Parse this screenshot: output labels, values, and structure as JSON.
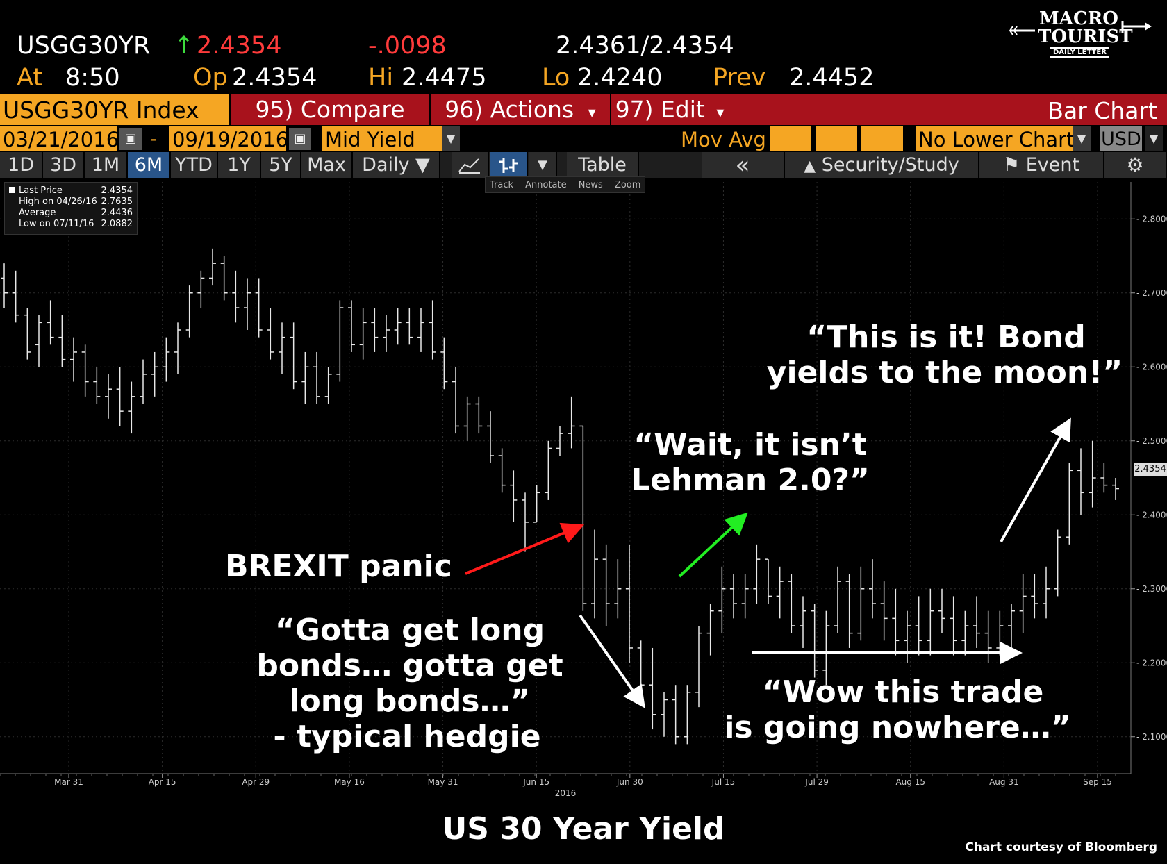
{
  "quote": {
    "ticker": "USGG30YR",
    "arrow": "↑",
    "last": "2.4354",
    "change": "-.0098",
    "bid_ask": "2.4361/2.4354",
    "at_label": "At",
    "time": "8:50",
    "open_label": "Op",
    "open": "2.4354",
    "high_label": "Hi",
    "high": "2.4475",
    "low_label": "Lo",
    "low": "2.4240",
    "prev_label": "Prev",
    "prev": "2.4452"
  },
  "logo": {
    "line1": "MACRO",
    "line2": "TOURIST",
    "line3": "DAILY LETTER"
  },
  "toolbar": {
    "index_name": "USGG30YR Index",
    "compare": "95) Compare",
    "actions": "96) Actions",
    "actions_caret": "▾",
    "edit": "97) Edit",
    "edit_caret": "▾",
    "chart_type": "Bar Chart"
  },
  "settings": {
    "start_date": "03/21/2016",
    "dash": "-",
    "end_date": "09/19/2016",
    "field": "Mid Yield",
    "mov_avg": "Mov Avg",
    "lower_chart": "No Lower Chart",
    "currency": "USD",
    "caret": "▼",
    "calendar_icon": "calendar-icon"
  },
  "tabs": {
    "periods": [
      "1D",
      "3D",
      "1M",
      "6M",
      "YTD",
      "1Y",
      "5Y",
      "Max"
    ],
    "active": "6M",
    "frequency": "Daily ▼",
    "table": "Table",
    "collapse": "«",
    "security_study": "Security/Study",
    "event": "Event",
    "line_icon": "line-chart-icon",
    "bar_icon": "bar-chart-icon",
    "gear_icon": "gear-icon"
  },
  "tools": [
    "Track",
    "Annotate",
    "News",
    "Zoom"
  ],
  "legend": [
    {
      "label": "Last Price",
      "value": "2.4354"
    },
    {
      "label": "High on 04/26/16",
      "value": "2.7635"
    },
    {
      "label": "Average",
      "value": "2.4436"
    },
    {
      "label": "Low on 07/11/16",
      "value": "2.0882"
    }
  ],
  "last_label": "2.4354",
  "annotations": {
    "brexit": "BREXIT panic",
    "gotta_1": "“Gotta get long",
    "gotta_2": "bonds… gotta get",
    "gotta_3": "long bonds…”",
    "gotta_4": "- typical hedgie",
    "lehman_1": "“Wait, it isn’t",
    "lehman_2": "Lehman 2.0?”",
    "nowhere_1": "“Wow this trade",
    "nowhere_2": "is going nowhere…”",
    "moon_1": "“This is it! Bond",
    "moon_2": "yields to the moon!”"
  },
  "title": "US 30 Year Yield",
  "credit": "Chart courtesy of Bloomberg",
  "colors": {
    "background": "#000000",
    "accent_orange": "#f5a623",
    "title_red": "#a8121c",
    "up_green": "#3ddc3d",
    "down_red": "#ff3b3b",
    "active_tab": "#29558a"
  },
  "chart_data": {
    "type": "bar",
    "ylim": [
      2.05,
      2.85
    ],
    "yticks": [
      "2.1000",
      "2.2000",
      "2.3000",
      "2.4000",
      "2.5000",
      "2.6000",
      "2.7000",
      "2.8000"
    ],
    "year_label": "2016",
    "xticks": [
      "Mar 31",
      "Apr 15",
      "Apr 29",
      "May 16",
      "May 31",
      "Jun 15",
      "Jun 30",
      "Jul 15",
      "Jul 29",
      "Aug 15",
      "Aug 31",
      "Sep 15"
    ],
    "ohlc": [
      [
        2.72,
        2.74,
        2.68,
        2.7
      ],
      [
        2.7,
        2.73,
        2.66,
        2.67
      ],
      [
        2.67,
        2.68,
        2.61,
        2.62
      ],
      [
        2.63,
        2.67,
        2.6,
        2.66
      ],
      [
        2.66,
        2.69,
        2.63,
        2.64
      ],
      [
        2.64,
        2.67,
        2.6,
        2.61
      ],
      [
        2.61,
        2.64,
        2.58,
        2.62
      ],
      [
        2.62,
        2.63,
        2.56,
        2.58
      ],
      [
        2.58,
        2.6,
        2.55,
        2.56
      ],
      [
        2.56,
        2.59,
        2.53,
        2.57
      ],
      [
        2.57,
        2.6,
        2.52,
        2.54
      ],
      [
        2.54,
        2.58,
        2.51,
        2.56
      ],
      [
        2.56,
        2.61,
        2.55,
        2.59
      ],
      [
        2.59,
        2.62,
        2.56,
        2.6
      ],
      [
        2.6,
        2.64,
        2.58,
        2.62
      ],
      [
        2.62,
        2.66,
        2.59,
        2.65
      ],
      [
        2.65,
        2.71,
        2.64,
        2.7
      ],
      [
        2.7,
        2.73,
        2.68,
        2.72
      ],
      [
        2.72,
        2.76,
        2.71,
        2.74
      ],
      [
        2.74,
        2.75,
        2.69,
        2.7
      ],
      [
        2.7,
        2.73,
        2.66,
        2.68
      ],
      [
        2.68,
        2.72,
        2.65,
        2.7
      ],
      [
        2.7,
        2.72,
        2.64,
        2.65
      ],
      [
        2.65,
        2.68,
        2.61,
        2.62
      ],
      [
        2.62,
        2.66,
        2.59,
        2.64
      ],
      [
        2.64,
        2.66,
        2.57,
        2.58
      ],
      [
        2.58,
        2.62,
        2.55,
        2.6
      ],
      [
        2.6,
        2.62,
        2.55,
        2.56
      ],
      [
        2.56,
        2.6,
        2.55,
        2.59
      ],
      [
        2.59,
        2.69,
        2.58,
        2.68
      ],
      [
        2.68,
        2.69,
        2.62,
        2.63
      ],
      [
        2.63,
        2.68,
        2.61,
        2.66
      ],
      [
        2.66,
        2.68,
        2.62,
        2.64
      ],
      [
        2.64,
        2.67,
        2.62,
        2.65
      ],
      [
        2.65,
        2.68,
        2.63,
        2.66
      ],
      [
        2.66,
        2.68,
        2.63,
        2.64
      ],
      [
        2.64,
        2.68,
        2.62,
        2.66
      ],
      [
        2.66,
        2.69,
        2.61,
        2.62
      ],
      [
        2.62,
        2.64,
        2.57,
        2.58
      ],
      [
        2.58,
        2.6,
        2.51,
        2.52
      ],
      [
        2.52,
        2.56,
        2.5,
        2.55
      ],
      [
        2.55,
        2.56,
        2.51,
        2.52
      ],
      [
        2.52,
        2.54,
        2.47,
        2.48
      ],
      [
        2.48,
        2.49,
        2.43,
        2.44
      ],
      [
        2.44,
        2.46,
        2.39,
        2.42
      ],
      [
        2.42,
        2.43,
        2.35,
        2.39
      ],
      [
        2.39,
        2.44,
        2.39,
        2.43
      ],
      [
        2.43,
        2.5,
        2.42,
        2.49
      ],
      [
        2.49,
        2.52,
        2.48,
        2.51
      ],
      [
        2.51,
        2.56,
        2.49,
        2.52
      ],
      [
        2.52,
        2.52,
        2.27,
        2.28
      ],
      [
        2.28,
        2.38,
        2.26,
        2.34
      ],
      [
        2.34,
        2.36,
        2.25,
        2.28
      ],
      [
        2.28,
        2.34,
        2.26,
        2.3
      ],
      [
        2.3,
        2.36,
        2.2,
        2.22
      ],
      [
        2.22,
        2.23,
        2.15,
        2.17
      ],
      [
        2.17,
        2.22,
        2.11,
        2.13
      ],
      [
        2.13,
        2.16,
        2.1,
        2.15
      ],
      [
        2.15,
        2.17,
        2.09,
        2.1
      ],
      [
        2.1,
        2.17,
        2.09,
        2.16
      ],
      [
        2.16,
        2.25,
        2.14,
        2.24
      ],
      [
        2.24,
        2.28,
        2.21,
        2.27
      ],
      [
        2.27,
        2.33,
        2.24,
        2.3
      ],
      [
        2.3,
        2.32,
        2.26,
        2.28
      ],
      [
        2.28,
        2.32,
        2.26,
        2.3
      ],
      [
        2.3,
        2.36,
        2.28,
        2.34
      ],
      [
        2.34,
        2.34,
        2.28,
        2.29
      ],
      [
        2.29,
        2.33,
        2.26,
        2.31
      ],
      [
        2.31,
        2.32,
        2.24,
        2.25
      ],
      [
        2.25,
        2.29,
        2.22,
        2.27
      ],
      [
        2.27,
        2.28,
        2.18,
        2.19
      ],
      [
        2.19,
        2.27,
        2.17,
        2.25
      ],
      [
        2.25,
        2.33,
        2.24,
        2.31
      ],
      [
        2.31,
        2.32,
        2.22,
        2.24
      ],
      [
        2.24,
        2.33,
        2.23,
        2.3
      ],
      [
        2.3,
        2.34,
        2.26,
        2.28
      ],
      [
        2.28,
        2.31,
        2.23,
        2.26
      ],
      [
        2.26,
        2.3,
        2.21,
        2.23
      ],
      [
        2.23,
        2.27,
        2.2,
        2.25
      ],
      [
        2.25,
        2.29,
        2.21,
        2.23
      ],
      [
        2.23,
        2.3,
        2.21,
        2.27
      ],
      [
        2.27,
        2.3,
        2.24,
        2.26
      ],
      [
        2.26,
        2.29,
        2.21,
        2.23
      ],
      [
        2.23,
        2.27,
        2.21,
        2.25
      ],
      [
        2.25,
        2.29,
        2.22,
        2.24
      ],
      [
        2.24,
        2.27,
        2.2,
        2.22
      ],
      [
        2.22,
        2.27,
        2.21,
        2.25
      ],
      [
        2.25,
        2.28,
        2.22,
        2.27
      ],
      [
        2.27,
        2.32,
        2.24,
        2.29
      ],
      [
        2.29,
        2.32,
        2.26,
        2.28
      ],
      [
        2.28,
        2.33,
        2.26,
        2.3
      ],
      [
        2.3,
        2.38,
        2.29,
        2.37
      ],
      [
        2.37,
        2.47,
        2.36,
        2.46
      ],
      [
        2.46,
        2.49,
        2.4,
        2.43
      ],
      [
        2.43,
        2.5,
        2.41,
        2.45
      ],
      [
        2.45,
        2.47,
        2.43,
        2.44
      ],
      [
        2.44,
        2.45,
        2.42,
        2.4354
      ]
    ]
  }
}
